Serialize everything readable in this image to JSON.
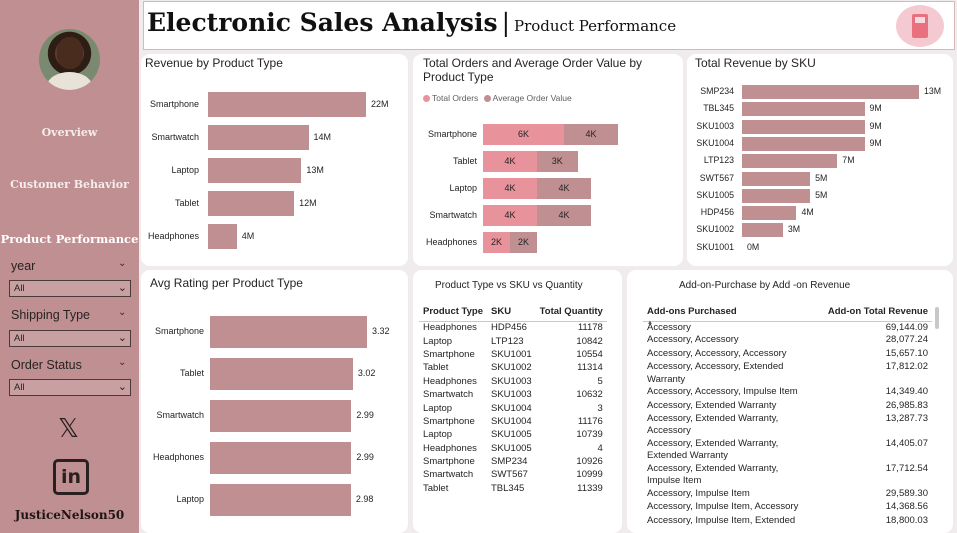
{
  "sidebar": {
    "nav": [
      "Overview",
      "Customer Behavior",
      "Product Performance"
    ],
    "slicers": [
      {
        "title": "year",
        "value": "All"
      },
      {
        "title": "Shipping Type",
        "value": "All"
      },
      {
        "title": "Order Status",
        "value": "All"
      }
    ],
    "x_glyph": "𝕏",
    "linkedin_glyph": "in",
    "handle": "JusticeNelson50"
  },
  "header": {
    "title": "Electronic Sales Analysis",
    "separator": "|",
    "subtitle": "Product Performance"
  },
  "charts": {
    "revenue_by_type": {
      "type": "bar",
      "title": "Revenue by Product Type",
      "categories": [
        "Smartphone",
        "Smartwatch",
        "Laptop",
        "Tablet",
        "Headphones"
      ],
      "values": [
        22,
        14,
        13,
        12,
        4
      ],
      "labels": [
        "22M",
        "14M",
        "13M",
        "12M",
        "4M"
      ],
      "unit": "M"
    },
    "orders_aov": {
      "type": "bar",
      "title": "Total Orders and Average Order Value by Product Type",
      "legend": [
        "Total Orders",
        "Average Order Value"
      ],
      "categories": [
        "Smartphone",
        "Tablet",
        "Laptop",
        "Smartwatch",
        "Headphones"
      ],
      "series": [
        {
          "name": "Total Orders",
          "values": [
            6,
            4,
            4,
            4,
            2
          ],
          "labels": [
            "6K",
            "4K",
            "4K",
            "4K",
            "2K"
          ]
        },
        {
          "name": "Average Order Value",
          "values": [
            4,
            3,
            4,
            4,
            2
          ],
          "labels": [
            "4K",
            "3K",
            "4K",
            "4K",
            "2K"
          ]
        }
      ]
    },
    "revenue_by_sku": {
      "type": "bar",
      "title": "Total Revenue by SKU",
      "categories": [
        "SMP234",
        "TBL345",
        "SKU1003",
        "SKU1004",
        "LTP123",
        "SWT567",
        "SKU1005",
        "HDP456",
        "SKU1002",
        "SKU1001"
      ],
      "values": [
        13,
        9,
        9,
        9,
        7,
        5,
        5,
        4,
        3,
        0
      ],
      "labels": [
        "13M",
        "9M",
        "9M",
        "9M",
        "7M",
        "5M",
        "5M",
        "4M",
        "3M",
        "0M"
      ]
    },
    "avg_rating": {
      "type": "bar",
      "title": "Avg Rating per Product Type",
      "categories": [
        "Smartphone",
        "Tablet",
        "Smartwatch",
        "Headphones",
        "Laptop"
      ],
      "values": [
        3.32,
        3.02,
        2.99,
        2.99,
        2.98
      ],
      "labels": [
        "3.32",
        "3.02",
        "2.99",
        "2.99",
        "2.98"
      ]
    }
  },
  "sku_table": {
    "title": "Product Type vs SKU vs Quantity",
    "columns": [
      "Product Type",
      "SKU",
      "Total Quantity"
    ],
    "rows": [
      [
        "Headphones",
        "HDP456",
        "11178"
      ],
      [
        "Laptop",
        "LTP123",
        "10842"
      ],
      [
        "Smartphone",
        "SKU1001",
        "10554"
      ],
      [
        "Tablet",
        "SKU1002",
        "11314"
      ],
      [
        "Headphones",
        "SKU1003",
        "5"
      ],
      [
        "Smartwatch",
        "SKU1003",
        "10632"
      ],
      [
        "Laptop",
        "SKU1004",
        "3"
      ],
      [
        "Smartphone",
        "SKU1004",
        "11176"
      ],
      [
        "Laptop",
        "SKU1005",
        "10739"
      ],
      [
        "Headphones",
        "SKU1005",
        "4"
      ],
      [
        "Smartphone",
        "SMP234",
        "10926"
      ],
      [
        "Smartwatch",
        "SWT567",
        "10999"
      ],
      [
        "Tablet",
        "TBL345",
        "11339"
      ]
    ]
  },
  "addon_table": {
    "title": "Add-on-Purchase by Add -on Revenue",
    "columns": [
      "Add-ons Purchased",
      "Add-on Total Revenue"
    ],
    "rows": [
      [
        "Accessory",
        "69,144.09"
      ],
      [
        "Accessory, Accessory",
        "28,077.24"
      ],
      [
        "Accessory, Accessory, Accessory",
        "15,657.10"
      ],
      [
        "Accessory, Accessory, Extended Warranty",
        "17,812.02"
      ],
      [
        "Accessory, Accessory, Impulse Item",
        "14,349.40"
      ],
      [
        "Accessory, Extended Warranty",
        "26,985.83"
      ],
      [
        "Accessory, Extended Warranty, Accessory",
        "13,287.73"
      ],
      [
        "Accessory, Extended Warranty, Extended Warranty",
        "14,405.07"
      ],
      [
        "Accessory, Extended Warranty, Impulse Item",
        "17,712.54"
      ],
      [
        "Accessory, Impulse Item",
        "29,589.30"
      ],
      [
        "Accessory, Impulse Item, Accessory",
        "14,368.56"
      ],
      [
        "Accessory, Impulse Item, Extended",
        "18,800.03"
      ]
    ]
  },
  "colors": {
    "bar": "#c08f91",
    "orders": "#e8929b",
    "sidebar": "#c08f91"
  }
}
